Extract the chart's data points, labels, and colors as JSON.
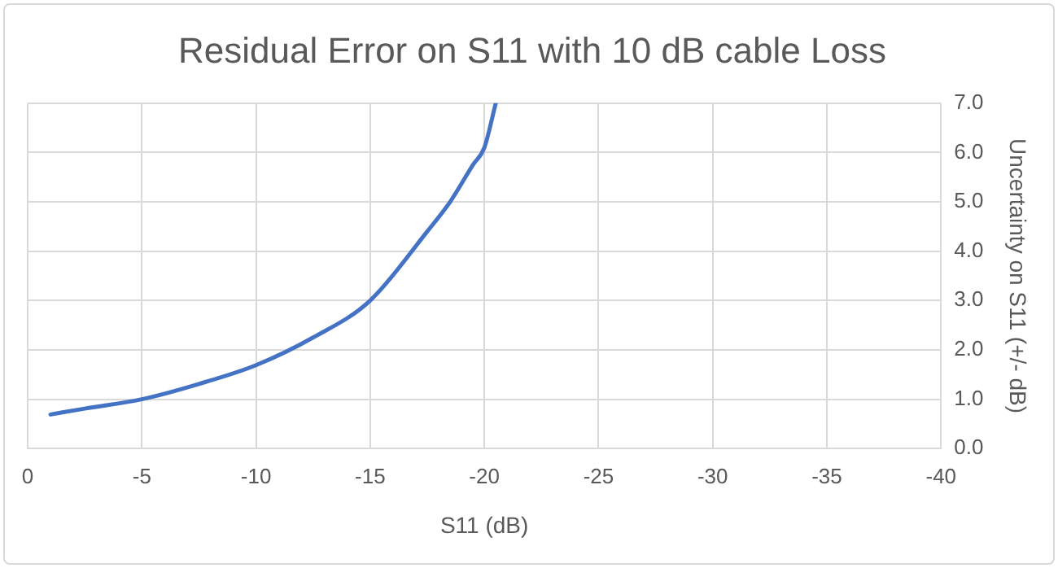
{
  "chart_data": {
    "type": "line",
    "title": "Residual Error on S11 with 10 dB cable Loss",
    "xlabel": "S11 (dB)",
    "y2label": "Uncertainty on S11 (+/- dB)",
    "x": [
      -1,
      -2.5,
      -5,
      -7.5,
      -10,
      -12.5,
      -15,
      -17.5,
      -18.5,
      -19.5,
      -20,
      -20.5
    ],
    "series": [
      {
        "color": "#4472c4",
        "axis": "y2",
        "values": [
          0.69,
          0.81,
          1.0,
          1.31,
          1.69,
          2.25,
          3.0,
          4.4,
          5.0,
          5.75,
          6.1,
          7.0
        ]
      }
    ],
    "xlim": [
      0,
      -40
    ],
    "xticks": [
      0,
      -5,
      -10,
      -15,
      -20,
      -25,
      -30,
      -35,
      -40
    ],
    "y2lim": [
      0,
      7
    ],
    "y2ticks": [
      {
        "value": 0,
        "label": "0.0"
      },
      {
        "value": 1,
        "label": "1.0"
      },
      {
        "value": 2,
        "label": "2.0"
      },
      {
        "value": 3,
        "label": "3.0"
      },
      {
        "value": 4,
        "label": "4.0"
      },
      {
        "value": 5,
        "label": "5.0"
      },
      {
        "value": 6,
        "label": "6.0"
      },
      {
        "value": 7,
        "label": "7.0"
      }
    ],
    "grid": true,
    "legend": false,
    "marker": "none",
    "line_style": "solid"
  }
}
